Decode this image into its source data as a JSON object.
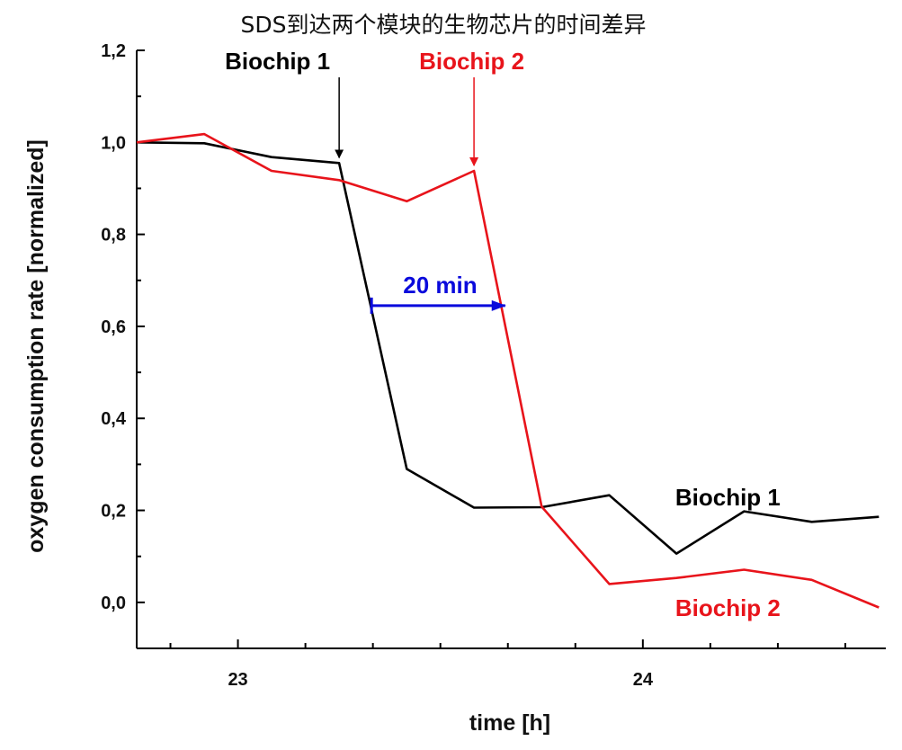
{
  "chart_data": {
    "type": "line",
    "title": "SDS到达两个模块的生物芯片的时间差异",
    "xlabel": "time [h]",
    "ylabel": "oxygen consumption rate [normalized]",
    "xlim": [
      22.75,
      24.6
    ],
    "ylim": [
      -0.1,
      1.2
    ],
    "xticks": [
      {
        "value": 23,
        "label": "23"
      },
      {
        "value": 24,
        "label": "24"
      }
    ],
    "yticks": [
      {
        "value": 0.0,
        "label": "0,0"
      },
      {
        "value": 0.2,
        "label": "0,2"
      },
      {
        "value": 0.4,
        "label": "0,4"
      },
      {
        "value": 0.6,
        "label": "0,6"
      },
      {
        "value": 0.8,
        "label": "0,8"
      },
      {
        "value": 1.0,
        "label": "1,0"
      },
      {
        "value": 1.2,
        "label": "1,2"
      }
    ],
    "series": [
      {
        "name": "Biochip 1",
        "color": "#000000",
        "x": [
          22.75,
          22.917,
          23.083,
          23.25,
          23.417,
          23.583,
          23.75,
          23.917,
          24.083,
          24.25,
          24.417,
          24.583
        ],
        "y": [
          1.0,
          0.998,
          0.968,
          0.955,
          0.29,
          0.206,
          0.207,
          0.233,
          0.106,
          0.198,
          0.175,
          0.186
        ]
      },
      {
        "name": "Biochip 2",
        "color": "#e8141b",
        "x": [
          22.75,
          22.917,
          23.083,
          23.25,
          23.417,
          23.583,
          23.75,
          23.917,
          24.083,
          24.25,
          24.417,
          24.583
        ],
        "y": [
          1.0,
          1.018,
          0.938,
          0.918,
          0.872,
          0.938,
          0.208,
          0.04,
          0.053,
          0.071,
          0.049,
          -0.011
        ]
      }
    ],
    "annotations": [
      {
        "id": "arrow-biochip1",
        "text": "Biochip 1",
        "color": "#000000",
        "x": 23.25,
        "y": 0.955
      },
      {
        "id": "arrow-biochip2",
        "text": "Biochip 2",
        "color": "#e8141b",
        "x": 23.583,
        "y": 0.938
      },
      {
        "id": "label-biochip1",
        "text": "Biochip 1",
        "color": "#000000",
        "x": 24.08,
        "y": 0.23
      },
      {
        "id": "label-biochip2",
        "text": "Biochip 2",
        "color": "#e8141b",
        "x": 24.08,
        "y": -0.01
      },
      {
        "id": "interval",
        "text": "20 min",
        "color": "#0a0adc",
        "x_start": 23.33,
        "x_end": 23.66,
        "y": 0.645
      }
    ]
  }
}
